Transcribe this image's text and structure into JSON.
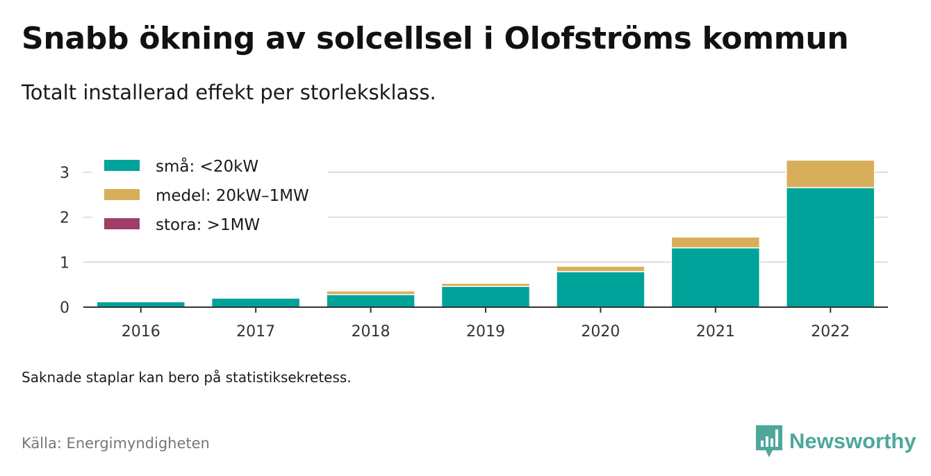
{
  "title": "Snabb ökning av solcellsel i Olofströms kommun",
  "subtitle": "Totalt installerad effekt per storleksklass.",
  "note": "Saknade staplar kan bero på statistiksekretess.",
  "source": "Källa: Energimyndigheten",
  "brand": {
    "name": "Newsworthy",
    "icon": "newsworthy-chart-icon"
  },
  "colors": {
    "small": "#00a39a",
    "medium": "#d9ae5a",
    "large": "#a03d68",
    "grid": "#dddddd",
    "axis": "#333333",
    "brand": "#4ea79a"
  },
  "chart_data": {
    "type": "bar",
    "stacked": true,
    "title": "Snabb ökning av solcellsel i Olofströms kommun",
    "subtitle": "Totalt installerad effekt per storleksklass.",
    "xlabel": "",
    "ylabel": "",
    "categories": [
      "2016",
      "2017",
      "2018",
      "2019",
      "2020",
      "2021",
      "2022"
    ],
    "ylim": [
      0,
      3.3
    ],
    "yticks": [
      0,
      1,
      2,
      3
    ],
    "grid": true,
    "legend_position": "top-left",
    "series": [
      {
        "name": "små: <20kW",
        "key": "small",
        "values": [
          0.12,
          0.2,
          0.28,
          0.46,
          0.79,
          1.32,
          2.66
        ]
      },
      {
        "name": "medel: 20kW–1MW",
        "key": "medium",
        "values": [
          0,
          0,
          0.08,
          0.07,
          0.12,
          0.24,
          0.61
        ]
      },
      {
        "name": "stora: >1MW",
        "key": "large",
        "values": [
          0,
          0,
          0,
          0,
          0,
          0,
          0
        ]
      }
    ]
  }
}
